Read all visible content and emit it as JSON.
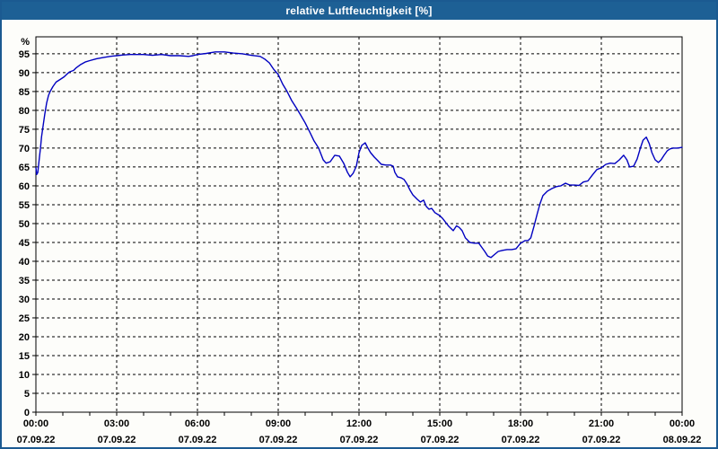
{
  "window": {
    "title": "relative Luftfeuchtigkeit [%]",
    "titlebar_bg": "#1d6095",
    "frame_color": "#1b5a91",
    "content_bg": "#fdfdfa"
  },
  "chart_data": {
    "type": "line",
    "title": "relative Luftfeuchtigkeit [%]",
    "xlabel": "",
    "ylabel": "%",
    "ylim": [
      0,
      99.5
    ],
    "yticks": [
      0,
      5,
      10,
      15,
      20,
      25,
      30,
      35,
      40,
      45,
      50,
      55,
      60,
      65,
      70,
      75,
      80,
      85,
      90,
      95
    ],
    "x_hours": [
      0,
      24
    ],
    "x_gridlines": [
      3,
      6,
      9,
      12,
      15,
      18,
      21
    ],
    "xticks": [
      {
        "hour": 0,
        "time": "00:00",
        "date": "07.09.22"
      },
      {
        "hour": 3,
        "time": "03:00",
        "date": "07.09.22"
      },
      {
        "hour": 6,
        "time": "06:00",
        "date": "07.09.22"
      },
      {
        "hour": 9,
        "time": "09:00",
        "date": "07.09.22"
      },
      {
        "hour": 12,
        "time": "12:00",
        "date": "07.09.22"
      },
      {
        "hour": 15,
        "time": "15:00",
        "date": "07.09.22"
      },
      {
        "hour": 18,
        "time": "18:00",
        "date": "07.09.22"
      },
      {
        "hour": 21,
        "time": "21:00",
        "date": "07.09.22"
      },
      {
        "hour": 24,
        "time": "00:00",
        "date": "08.09.22"
      }
    ],
    "grid": "dashed",
    "legend": "none",
    "line_color": "#0000c0",
    "series": [
      {
        "name": "relative Luftfeuchtigkeit",
        "unit": "%",
        "points": [
          [
            0.0,
            64.8
          ],
          [
            0.03,
            63.0
          ],
          [
            0.07,
            63.5
          ],
          [
            0.13,
            67.5
          ],
          [
            0.17,
            70.0
          ],
          [
            0.21,
            73.0
          ],
          [
            0.27,
            76.0
          ],
          [
            0.33,
            79.0
          ],
          [
            0.4,
            82.0
          ],
          [
            0.47,
            84.0
          ],
          [
            0.53,
            85.0
          ],
          [
            0.63,
            86.3
          ],
          [
            0.75,
            87.5
          ],
          [
            0.9,
            88.2
          ],
          [
            1.05,
            88.9
          ],
          [
            1.15,
            89.6
          ],
          [
            1.25,
            90.2
          ],
          [
            1.4,
            90.6
          ],
          [
            1.5,
            91.3
          ],
          [
            1.67,
            92.2
          ],
          [
            1.83,
            92.8
          ],
          [
            2.0,
            93.2
          ],
          [
            2.25,
            93.7
          ],
          [
            2.5,
            94.0
          ],
          [
            2.75,
            94.3
          ],
          [
            3.0,
            94.5
          ],
          [
            3.25,
            94.7
          ],
          [
            3.5,
            94.8
          ],
          [
            4.0,
            94.8
          ],
          [
            4.33,
            94.6
          ],
          [
            4.67,
            94.8
          ],
          [
            5.0,
            94.5
          ],
          [
            5.33,
            94.5
          ],
          [
            5.67,
            94.3
          ],
          [
            5.83,
            94.5
          ],
          [
            6.0,
            94.8
          ],
          [
            6.33,
            95.1
          ],
          [
            6.67,
            95.5
          ],
          [
            7.0,
            95.5
          ],
          [
            7.33,
            95.2
          ],
          [
            7.67,
            95.0
          ],
          [
            8.0,
            94.6
          ],
          [
            8.33,
            94.3
          ],
          [
            8.5,
            93.6
          ],
          [
            8.67,
            92.6
          ],
          [
            8.83,
            90.9
          ],
          [
            9.0,
            89.5
          ],
          [
            9.17,
            86.9
          ],
          [
            9.33,
            85.0
          ],
          [
            9.5,
            82.6
          ],
          [
            9.67,
            80.7
          ],
          [
            9.83,
            78.8
          ],
          [
            10.0,
            76.7
          ],
          [
            10.17,
            74.3
          ],
          [
            10.33,
            71.9
          ],
          [
            10.5,
            70.0
          ],
          [
            10.67,
            66.9
          ],
          [
            10.78,
            66.0
          ],
          [
            10.93,
            66.4
          ],
          [
            11.1,
            68.1
          ],
          [
            11.27,
            67.9
          ],
          [
            11.43,
            66.0
          ],
          [
            11.57,
            63.6
          ],
          [
            11.67,
            62.4
          ],
          [
            11.78,
            63.3
          ],
          [
            11.9,
            65.2
          ],
          [
            12.0,
            68.8
          ],
          [
            12.1,
            70.7
          ],
          [
            12.23,
            71.4
          ],
          [
            12.33,
            70.0
          ],
          [
            12.43,
            68.8
          ],
          [
            12.57,
            67.6
          ],
          [
            12.67,
            66.9
          ],
          [
            12.83,
            65.7
          ],
          [
            13.0,
            65.5
          ],
          [
            13.17,
            65.5
          ],
          [
            13.27,
            65.2
          ],
          [
            13.33,
            63.6
          ],
          [
            13.43,
            62.4
          ],
          [
            13.57,
            62.1
          ],
          [
            13.67,
            61.7
          ],
          [
            13.78,
            60.5
          ],
          [
            13.9,
            58.8
          ],
          [
            14.0,
            57.6
          ],
          [
            14.17,
            56.4
          ],
          [
            14.28,
            55.7
          ],
          [
            14.4,
            56.2
          ],
          [
            14.5,
            54.5
          ],
          [
            14.6,
            53.8
          ],
          [
            14.7,
            54.0
          ],
          [
            14.82,
            52.9
          ],
          [
            15.0,
            52.1
          ],
          [
            15.1,
            51.4
          ],
          [
            15.33,
            49.3
          ],
          [
            15.5,
            48.1
          ],
          [
            15.62,
            49.4
          ],
          [
            15.72,
            49.0
          ],
          [
            15.83,
            48.1
          ],
          [
            15.95,
            46.2
          ],
          [
            16.12,
            45.0
          ],
          [
            16.28,
            44.8
          ],
          [
            16.45,
            44.8
          ],
          [
            16.55,
            43.8
          ],
          [
            16.67,
            42.6
          ],
          [
            16.78,
            41.4
          ],
          [
            16.9,
            41.0
          ],
          [
            17.05,
            41.9
          ],
          [
            17.17,
            42.6
          ],
          [
            17.33,
            42.9
          ],
          [
            17.5,
            43.1
          ],
          [
            17.67,
            43.1
          ],
          [
            17.83,
            43.3
          ],
          [
            18.0,
            44.8
          ],
          [
            18.17,
            45.5
          ],
          [
            18.28,
            45.5
          ],
          [
            18.38,
            46.2
          ],
          [
            18.5,
            49.3
          ],
          [
            18.62,
            52.6
          ],
          [
            18.72,
            55.2
          ],
          [
            18.83,
            57.4
          ],
          [
            19.0,
            58.6
          ],
          [
            19.17,
            59.3
          ],
          [
            19.33,
            59.8
          ],
          [
            19.5,
            60.0
          ],
          [
            19.67,
            60.7
          ],
          [
            19.83,
            60.2
          ],
          [
            20.0,
            60.2
          ],
          [
            20.17,
            60.1
          ],
          [
            20.33,
            61.0
          ],
          [
            20.5,
            61.3
          ],
          [
            20.67,
            62.9
          ],
          [
            20.83,
            64.3
          ],
          [
            21.0,
            64.8
          ],
          [
            21.17,
            65.7
          ],
          [
            21.33,
            66.0
          ],
          [
            21.5,
            65.9
          ],
          [
            21.67,
            66.9
          ],
          [
            21.83,
            68.1
          ],
          [
            21.95,
            66.9
          ],
          [
            22.05,
            65.0
          ],
          [
            22.2,
            65.2
          ],
          [
            22.33,
            67.1
          ],
          [
            22.45,
            70.0
          ],
          [
            22.55,
            72.1
          ],
          [
            22.67,
            72.9
          ],
          [
            22.78,
            71.2
          ],
          [
            22.88,
            68.8
          ],
          [
            23.0,
            66.9
          ],
          [
            23.12,
            66.2
          ],
          [
            23.22,
            66.9
          ],
          [
            23.33,
            68.1
          ],
          [
            23.45,
            69.3
          ],
          [
            23.55,
            69.8
          ],
          [
            23.67,
            70.0
          ],
          [
            23.83,
            70.0
          ],
          [
            24.0,
            70.2
          ]
        ]
      }
    ]
  }
}
